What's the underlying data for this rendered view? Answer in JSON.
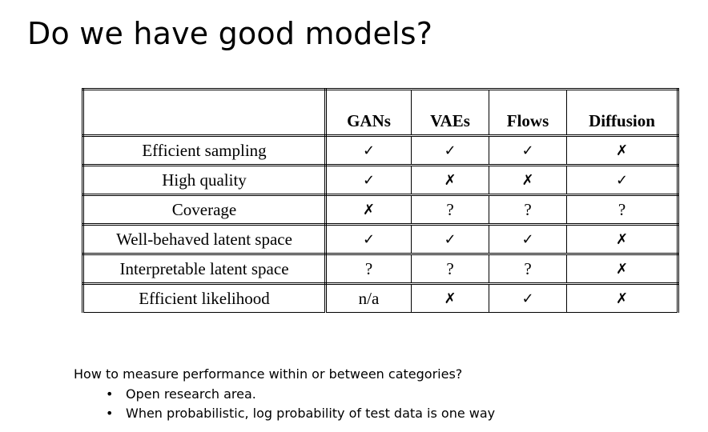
{
  "slide": {
    "title": "Do we have good models?"
  },
  "table": {
    "columns": [
      "",
      "GANs",
      "VAEs",
      "Flows",
      "Diffusion"
    ],
    "rows": [
      {
        "label": "Efficient sampling",
        "cells": [
          "✓",
          "✓",
          "✓",
          "✗"
        ]
      },
      {
        "label": "High quality",
        "cells": [
          "✓",
          "✗",
          "✗",
          "✓"
        ]
      },
      {
        "label": "Coverage",
        "cells": [
          "✗",
          "?",
          "?",
          "?"
        ]
      },
      {
        "label": "Well-behaved latent space",
        "cells": [
          "✓",
          "✓",
          "✓",
          "✗"
        ]
      },
      {
        "label": "Interpretable latent space",
        "cells": [
          "?",
          "?",
          "?",
          "✗"
        ]
      },
      {
        "label": "Efficient likelihood",
        "cells": [
          "n/a",
          "✗",
          "✓",
          "✗"
        ]
      }
    ]
  },
  "footer": {
    "question": "How to measure performance within or between categories?",
    "bullets": [
      "Open research area.",
      "When probabilistic, log probability of test data is one way"
    ]
  }
}
